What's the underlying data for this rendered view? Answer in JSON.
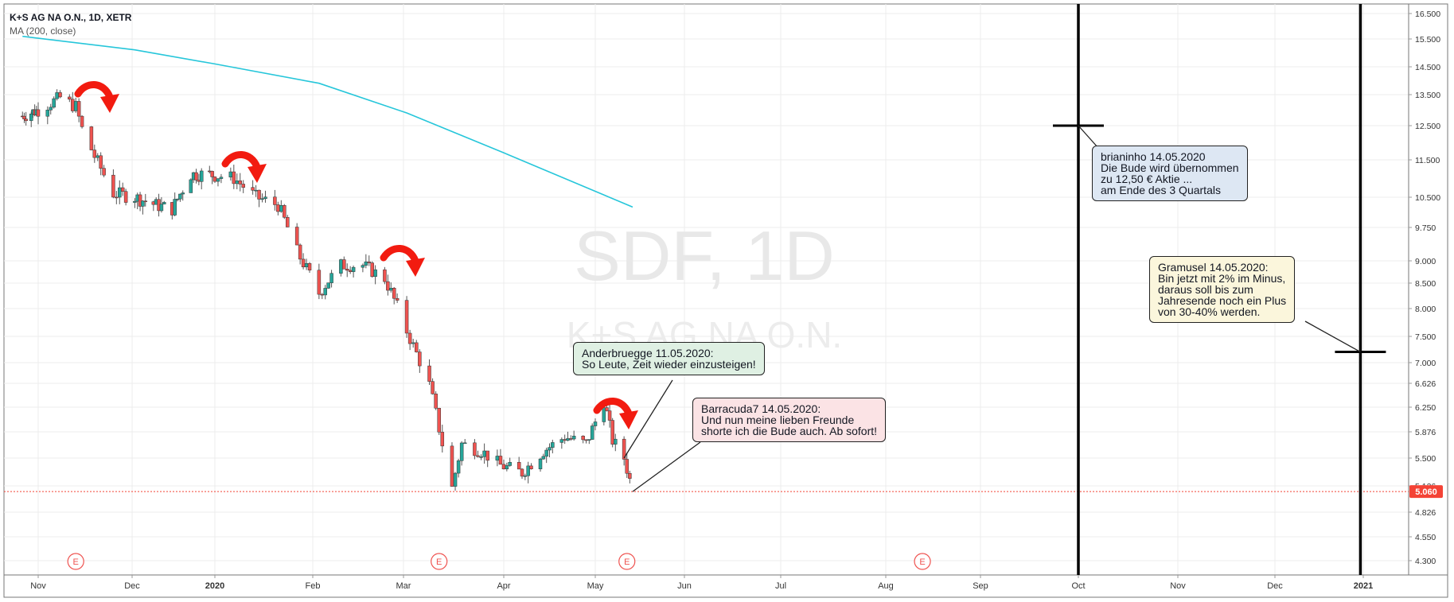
{
  "header": {
    "symbol": "K+S AG NA O.N., 1D, XETR",
    "indicator": "MA (200, close)"
  },
  "watermark": {
    "big": "SDF, 1D",
    "small": "K+S AG NA O.N."
  },
  "price_axis": {
    "ticks": [
      "16.500",
      "15.500",
      "14.500",
      "13.500",
      "12.500",
      "11.500",
      "10.500",
      "9.750",
      "9.000",
      "8.500",
      "8.000",
      "7.500",
      "7.000",
      "6.626",
      "6.250",
      "5.876",
      "5.500",
      "5.126",
      "4.826",
      "4.550",
      "4.300"
    ],
    "last_price_label": "5.060"
  },
  "time_axis": {
    "labels": [
      "Nov",
      "Dec",
      "2020",
      "Feb",
      "Mar",
      "Apr",
      "May",
      "Jun",
      "Jul",
      "Aug",
      "Sep",
      "Oct",
      "Nov",
      "Dec",
      "2021"
    ]
  },
  "earnings_marker": "E",
  "callouts": {
    "brian": [
      "brianinho 14.05.2020",
      "Die Bude wird übernommen",
      "zu 12,50 € Aktie ...",
      "am Ende des 3 Quartals"
    ],
    "ander": [
      "Anderbruegge 11.05.2020:",
      "So Leute, Zeit wieder einzusteigen!"
    ],
    "barra": [
      "Barracuda7 14.05.2020:",
      "Und nun meine lieben Freunde",
      "shorte ich die Bude auch. Ab sofort!"
    ],
    "gram": [
      "Gramusel 14.05.2020:",
      "Bin jetzt mit 2% im Minus,",
      "daraus soll bis zum",
      "Jahresende noch ein Plus",
      "von 30-40% werden."
    ]
  },
  "colors": {
    "up": "#26a69a",
    "down": "#ef5350",
    "ma": "#26c6da",
    "arrow": "#f21b10",
    "last_price": "#f44336"
  },
  "chart_data": {
    "type": "candlestick",
    "title": "K+S AG NA O.N., 1D, XETR",
    "y_scale": "log",
    "series": [
      {
        "name": "K+S AG NA O.N.",
        "path_approx_close": [
          {
            "x": "2019-10-23",
            "y": 12.8
          },
          {
            "x": "2019-11-01",
            "y": 13.0
          },
          {
            "x": "2019-11-08",
            "y": 13.4
          },
          {
            "x": "2019-11-13",
            "y": 13.1
          },
          {
            "x": "2019-11-15",
            "y": 12.4
          },
          {
            "x": "2019-11-19",
            "y": 11.6
          },
          {
            "x": "2019-11-25",
            "y": 10.6
          },
          {
            "x": "2019-12-02",
            "y": 10.5
          },
          {
            "x": "2019-12-10",
            "y": 10.3
          },
          {
            "x": "2019-12-16",
            "y": 10.2
          },
          {
            "x": "2019-12-23",
            "y": 11.1
          },
          {
            "x": "2019-12-30",
            "y": 11.1
          },
          {
            "x": "2020-01-07",
            "y": 11.0
          },
          {
            "x": "2020-01-14",
            "y": 10.5
          },
          {
            "x": "2020-01-21",
            "y": 10.3
          },
          {
            "x": "2020-01-27",
            "y": 9.2
          },
          {
            "x": "2020-02-03",
            "y": 8.3
          },
          {
            "x": "2020-02-10",
            "y": 8.9
          },
          {
            "x": "2020-02-17",
            "y": 8.9
          },
          {
            "x": "2020-02-24",
            "y": 8.6
          },
          {
            "x": "2020-03-02",
            "y": 7.6
          },
          {
            "x": "2020-03-09",
            "y": 6.6
          },
          {
            "x": "2020-03-13",
            "y": 5.7
          },
          {
            "x": "2020-03-16",
            "y": 5.1
          },
          {
            "x": "2020-03-19",
            "y": 5.7
          },
          {
            "x": "2020-03-25",
            "y": 5.6
          },
          {
            "x": "2020-03-31",
            "y": 5.4
          },
          {
            "x": "2020-04-07",
            "y": 5.3
          },
          {
            "x": "2020-04-14",
            "y": 5.6
          },
          {
            "x": "2020-04-21",
            "y": 5.8
          },
          {
            "x": "2020-04-28",
            "y": 5.7
          },
          {
            "x": "2020-05-04",
            "y": 6.35
          },
          {
            "x": "2020-05-07",
            "y": 5.75
          },
          {
            "x": "2020-05-11",
            "y": 5.5
          },
          {
            "x": "2020-05-14",
            "y": 5.06
          }
        ]
      },
      {
        "name": "MA (200, close)",
        "points": [
          {
            "x": "2019-10-23",
            "y": 15.6
          },
          {
            "x": "2019-12-02",
            "y": 15.1
          },
          {
            "x": "2020-01-01",
            "y": 14.6
          },
          {
            "x": "2020-02-03",
            "y": 13.9
          },
          {
            "x": "2020-03-02",
            "y": 12.9
          },
          {
            "x": "2020-04-01",
            "y": 11.7
          },
          {
            "x": "2020-05-14",
            "y": 10.25
          }
        ]
      }
    ],
    "last_price": 5.06,
    "horizontal_marks": [
      {
        "x": "2020-10-01",
        "y": 12.5
      },
      {
        "x": "2020-12-31",
        "y": 7.2
      }
    ],
    "earnings_dates": [
      "2019-11-13",
      "2020-03-12",
      "2020-05-12",
      "2020-08-13"
    ],
    "vertical_lines": [
      "2020-10-01",
      "2020-12-31"
    ]
  }
}
